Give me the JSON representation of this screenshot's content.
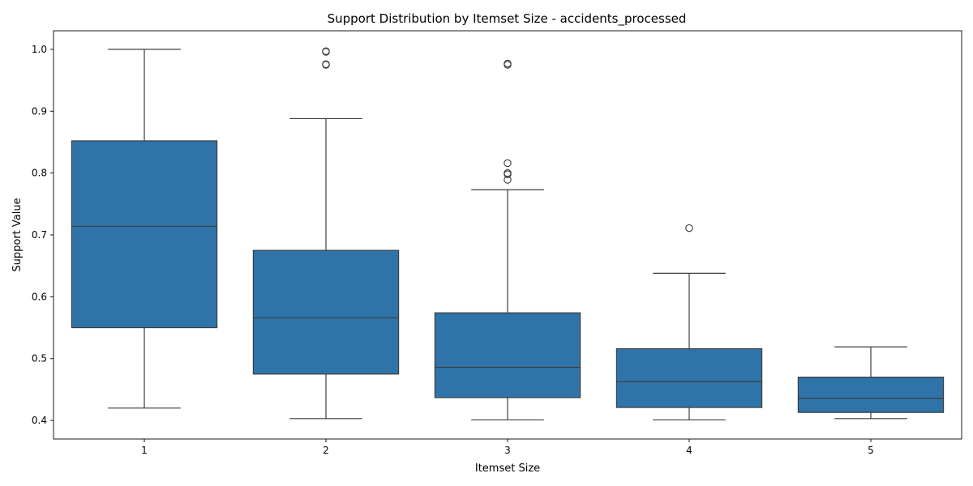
{
  "chart_data": {
    "type": "box",
    "title": "Support Distribution by Itemset Size - accidents_processed",
    "xlabel": "Itemset Size",
    "ylabel": "Support Value",
    "ylim": [
      0.37,
      1.03
    ],
    "yticks": [
      "0.4",
      "0.5",
      "0.6",
      "0.7",
      "0.8",
      "0.9",
      "1.0"
    ],
    "grid": false,
    "box_color": "#2e74a8",
    "line_color": "#3d3d3d",
    "categories": [
      "1",
      "2",
      "3",
      "4",
      "5"
    ],
    "boxes": [
      {
        "category": "1",
        "whisker_low": 0.42,
        "q1": 0.55,
        "median": 0.714,
        "q3": 0.852,
        "whisker_high": 1.0,
        "outliers": []
      },
      {
        "category": "2",
        "whisker_low": 0.403,
        "q1": 0.475,
        "median": 0.566,
        "q3": 0.675,
        "whisker_high": 0.888,
        "outliers": [
          0.976,
          0.997,
          0.996,
          0.975
        ]
      },
      {
        "category": "3",
        "whisker_low": 0.401,
        "q1": 0.437,
        "median": 0.486,
        "q3": 0.574,
        "whisker_high": 0.773,
        "outliers": [
          0.789,
          0.798,
          0.8,
          0.816,
          0.975,
          0.977
        ]
      },
      {
        "category": "4",
        "whisker_low": 0.401,
        "q1": 0.421,
        "median": 0.463,
        "q3": 0.516,
        "whisker_high": 0.638,
        "outliers": [
          0.711
        ]
      },
      {
        "category": "5",
        "whisker_low": 0.403,
        "q1": 0.413,
        "median": 0.436,
        "q3": 0.47,
        "whisker_high": 0.519,
        "outliers": []
      }
    ]
  }
}
